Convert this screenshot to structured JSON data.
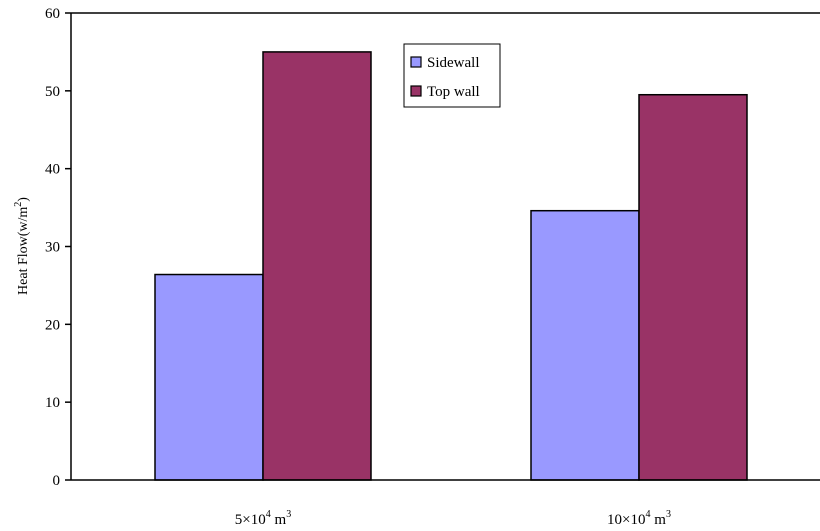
{
  "chart_data": {
    "type": "bar",
    "title": "",
    "xlabel": "",
    "ylabel": "Heat Flow(w/m",
    "ylabel_sup": "2",
    "ylabel_close": ")",
    "ylim": [
      0,
      60
    ],
    "yticks": [
      0,
      10,
      20,
      30,
      40,
      50,
      60
    ],
    "grid": false,
    "legend_position": "top-center",
    "categories": [
      {
        "base": "5×10",
        "sup1": "4",
        "mid": " m",
        "sup2": "3"
      },
      {
        "base": "10×10",
        "sup1": "4",
        "mid": " m",
        "sup2": "3"
      }
    ],
    "series": [
      {
        "name": "Sidewall",
        "color": "#9999ff",
        "values": [
          26.4,
          34.6
        ]
      },
      {
        "name": "Top wall",
        "color": "#993366",
        "values": [
          55.0,
          49.5
        ]
      }
    ]
  }
}
